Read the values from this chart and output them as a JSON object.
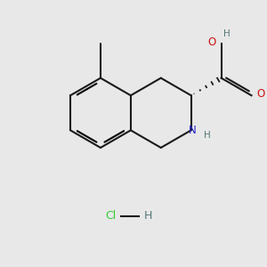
{
  "bg_color": "#e8e8e8",
  "bond_color": "#1a1a1a",
  "n_color": "#2424cc",
  "o_color": "#cc1111",
  "cl_color": "#33cc33",
  "h_color": "#557777",
  "line_width": 1.5,
  "figsize": [
    3.0,
    3.0
  ],
  "dpi": 100,
  "xlim": [
    0,
    10
  ],
  "ylim": [
    0,
    10
  ]
}
